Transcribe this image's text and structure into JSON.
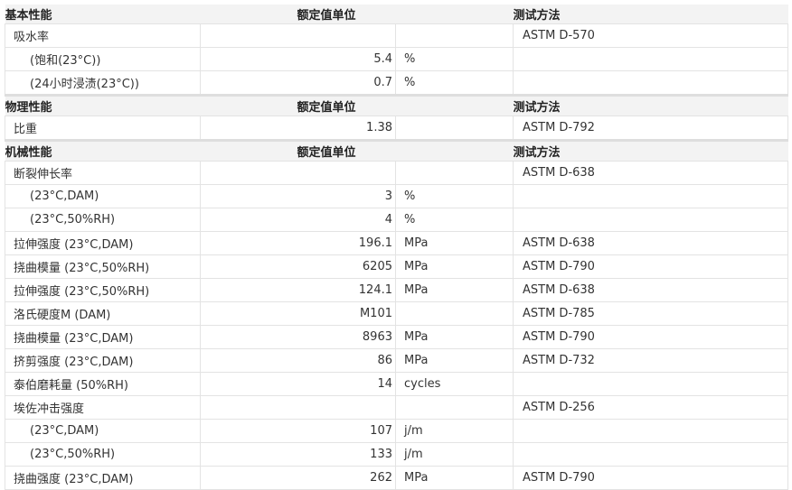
{
  "columns": {
    "value_unit": "额定值单位",
    "method": "测试方法"
  },
  "sections": [
    {
      "title": "基本性能",
      "rows": [
        {
          "name": "吸水率",
          "value": "",
          "unit": "",
          "method": "ASTM D-570",
          "sub": false
        },
        {
          "name": "(饱和(23°C))",
          "value": "5.4",
          "unit": "%",
          "method": "",
          "sub": true
        },
        {
          "name": "(24小时浸渍(23°C))",
          "value": "0.7",
          "unit": "%",
          "method": "",
          "sub": true
        }
      ]
    },
    {
      "title": "物理性能",
      "rows": [
        {
          "name": "比重",
          "value": "1.38",
          "unit": "",
          "method": "ASTM D-792",
          "sub": false
        }
      ]
    },
    {
      "title": "机械性能",
      "rows": [
        {
          "name": "断裂伸长率",
          "value": "",
          "unit": "",
          "method": "ASTM D-638",
          "sub": false
        },
        {
          "name": "(23°C,DAM)",
          "value": "3",
          "unit": "%",
          "method": "",
          "sub": true
        },
        {
          "name": "(23°C,50%RH)",
          "value": "4",
          "unit": "%",
          "method": "",
          "sub": true
        },
        {
          "name": "拉伸强度 (23°C,DAM)",
          "value": "196.1",
          "unit": "MPa",
          "method": "ASTM D-638",
          "sub": false
        },
        {
          "name": "挠曲模量 (23°C,50%RH)",
          "value": "6205",
          "unit": "MPa",
          "method": "ASTM D-790",
          "sub": false
        },
        {
          "name": "拉伸强度 (23°C,50%RH)",
          "value": "124.1",
          "unit": "MPa",
          "method": "ASTM D-638",
          "sub": false
        },
        {
          "name": "洛氏硬度M (DAM)",
          "value": "M101",
          "unit": "",
          "method": "ASTM D-785",
          "sub": false
        },
        {
          "name": "挠曲模量 (23°C,DAM)",
          "value": "8963",
          "unit": "MPa",
          "method": "ASTM D-790",
          "sub": false
        },
        {
          "name": "挤剪强度 (23°C,DAM)",
          "value": "86",
          "unit": "MPa",
          "method": "ASTM D-732",
          "sub": false
        },
        {
          "name": "泰伯磨耗量 (50%RH)",
          "value": "14",
          "unit": "cycles",
          "method": "",
          "sub": false
        },
        {
          "name": "埃佐冲击强度",
          "value": "",
          "unit": "",
          "method": "ASTM D-256",
          "sub": false
        },
        {
          "name": "(23°C,DAM)",
          "value": "107",
          "unit": "j/m",
          "method": "",
          "sub": true
        },
        {
          "name": "(23°C,50%RH)",
          "value": "133",
          "unit": "j/m",
          "method": "",
          "sub": true
        },
        {
          "name": "挠曲强度 (23°C,DAM)",
          "value": "262",
          "unit": "MPa",
          "method": "ASTM D-790",
          "sub": false
        }
      ]
    }
  ]
}
